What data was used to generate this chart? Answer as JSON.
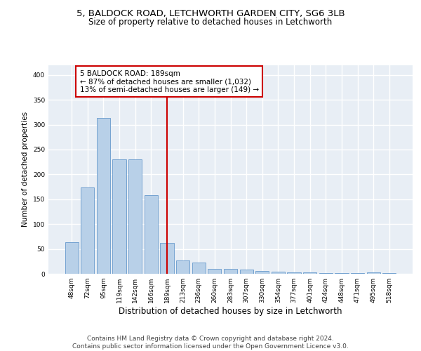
{
  "title1": "5, BALDOCK ROAD, LETCHWORTH GARDEN CITY, SG6 3LB",
  "title2": "Size of property relative to detached houses in Letchworth",
  "xlabel": "Distribution of detached houses by size in Letchworth",
  "ylabel": "Number of detached properties",
  "categories": [
    "48sqm",
    "72sqm",
    "95sqm",
    "119sqm",
    "142sqm",
    "166sqm",
    "189sqm",
    "213sqm",
    "236sqm",
    "260sqm",
    "283sqm",
    "307sqm",
    "330sqm",
    "354sqm",
    "377sqm",
    "401sqm",
    "424sqm",
    "448sqm",
    "471sqm",
    "495sqm",
    "518sqm"
  ],
  "values": [
    64,
    174,
    313,
    230,
    230,
    158,
    62,
    27,
    22,
    10,
    10,
    8,
    6,
    4,
    3,
    3,
    2,
    2,
    1,
    3,
    2
  ],
  "highlight_index": 6,
  "bar_color": "#b8d0e8",
  "bar_edge_color": "#6699cc",
  "highlight_line_color": "#cc0000",
  "annotation_text": "5 BALDOCK ROAD: 189sqm\n← 87% of detached houses are smaller (1,032)\n13% of semi-detached houses are larger (149) →",
  "annotation_box_color": "#ffffff",
  "annotation_box_edge_color": "#cc0000",
  "ylim": [
    0,
    420
  ],
  "yticks": [
    0,
    50,
    100,
    150,
    200,
    250,
    300,
    350,
    400
  ],
  "background_color": "#e8eef5",
  "grid_color": "#ffffff",
  "fig_background": "#ffffff",
  "footer_line1": "Contains HM Land Registry data © Crown copyright and database right 2024.",
  "footer_line2": "Contains public sector information licensed under the Open Government Licence v3.0.",
  "title1_fontsize": 9.5,
  "title2_fontsize": 8.5,
  "xlabel_fontsize": 8.5,
  "ylabel_fontsize": 7.5,
  "tick_fontsize": 6.5,
  "annotation_fontsize": 7.5,
  "footer_fontsize": 6.5
}
